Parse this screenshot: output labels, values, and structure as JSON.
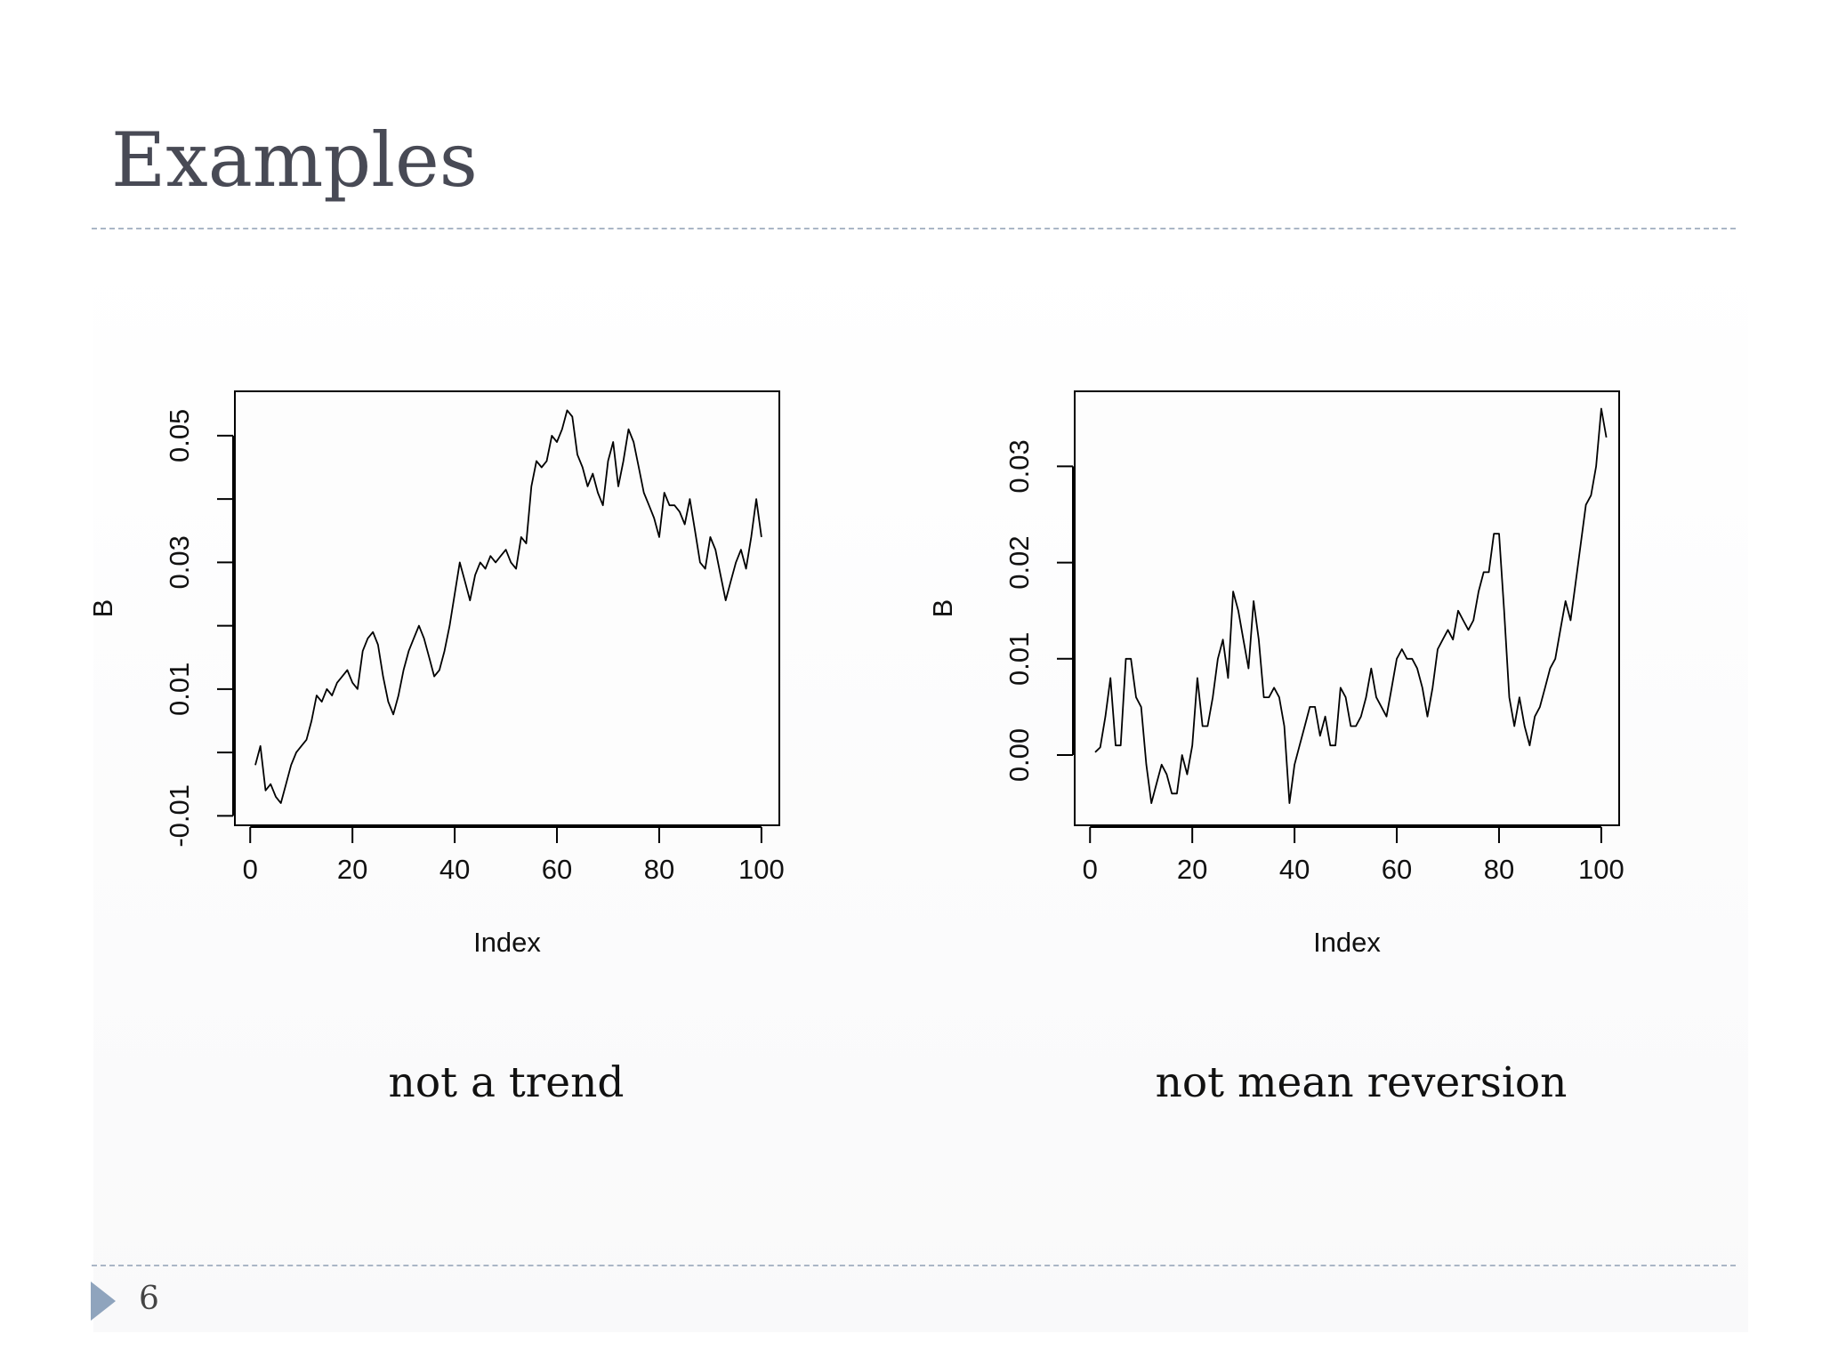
{
  "slide": {
    "title": "Examples",
    "page_number": "6",
    "caption_left": "not a trend",
    "caption_right": "not mean reversion"
  },
  "colors": {
    "title": "#484a55",
    "rule": "#aab6c6",
    "footer_triangle": "#8fa4bd",
    "line": "#000000"
  },
  "icons": {
    "footer_marker": "triangle-right-icon"
  },
  "chart_data": [
    {
      "type": "line",
      "title": "",
      "xlabel": "Index",
      "ylabel": "B",
      "xlim": [
        -3,
        103.5
      ],
      "ylim": [
        -0.0115,
        0.057
      ],
      "xticks": [
        0,
        20,
        40,
        60,
        80,
        100
      ],
      "xtick_labels": [
        "0",
        "20",
        "40",
        "60",
        "80",
        "100"
      ],
      "yticks": [
        -0.01,
        0.0,
        0.01,
        0.02,
        0.03,
        0.04,
        0.05
      ],
      "ytick_labels": [
        "-0.01",
        "",
        "0.01",
        "",
        "0.03",
        "",
        "0.05"
      ],
      "grid": false,
      "series": [
        {
          "values": [
            -0.002,
            0.001,
            -0.006,
            -0.005,
            -0.007,
            -0.008,
            -0.005,
            -0.002,
            0.0,
            0.001,
            0.002,
            0.005,
            0.009,
            0.008,
            0.01,
            0.009,
            0.011,
            0.012,
            0.013,
            0.011,
            0.01,
            0.016,
            0.018,
            0.019,
            0.017,
            0.012,
            0.008,
            0.006,
            0.009,
            0.013,
            0.016,
            0.018,
            0.02,
            0.018,
            0.015,
            0.012,
            0.013,
            0.016,
            0.02,
            0.025,
            0.03,
            0.027,
            0.024,
            0.028,
            0.03,
            0.029,
            0.031,
            0.03,
            0.031,
            0.032,
            0.03,
            0.029,
            0.034,
            0.033,
            0.042,
            0.046,
            0.045,
            0.046,
            0.05,
            0.049,
            0.051,
            0.054,
            0.053,
            0.047,
            0.045,
            0.042,
            0.044,
            0.041,
            0.039,
            0.046,
            0.049,
            0.042,
            0.046,
            0.051,
            0.049,
            0.045,
            0.041,
            0.039,
            0.037,
            0.034,
            0.041,
            0.039,
            0.039,
            0.038,
            0.036,
            0.04,
            0.035,
            0.03,
            0.029,
            0.034,
            0.032,
            0.028,
            0.024,
            0.027,
            0.03,
            0.032,
            0.029,
            0.034,
            0.04,
            0.034
          ]
        }
      ]
    },
    {
      "type": "line",
      "title": "",
      "xlabel": "Index",
      "ylabel": "B",
      "xlim": [
        -3,
        103.5
      ],
      "ylim": [
        -0.0073,
        0.0378
      ],
      "xticks": [
        0,
        20,
        40,
        60,
        80,
        100
      ],
      "xtick_labels": [
        "0",
        "20",
        "40",
        "60",
        "80",
        "100"
      ],
      "yticks": [
        0.0,
        0.01,
        0.02,
        0.03
      ],
      "ytick_labels": [
        "0.00",
        "0.01",
        "0.02",
        "0.03"
      ],
      "grid": false,
      "series": [
        {
          "values": [
            0.0003,
            0.0008,
            0.004,
            0.008,
            0.001,
            0.001,
            0.01,
            0.01,
            0.006,
            0.005,
            -0.001,
            -0.005,
            -0.003,
            -0.001,
            -0.002,
            -0.004,
            -0.004,
            0.0,
            -0.002,
            0.001,
            0.008,
            0.003,
            0.003,
            0.006,
            0.01,
            0.012,
            0.008,
            0.017,
            0.015,
            0.012,
            0.009,
            0.016,
            0.012,
            0.006,
            0.006,
            0.007,
            0.006,
            0.003,
            -0.005,
            -0.001,
            0.001,
            0.003,
            0.005,
            0.005,
            0.002,
            0.004,
            0.001,
            0.001,
            0.007,
            0.006,
            0.003,
            0.003,
            0.004,
            0.006,
            0.009,
            0.006,
            0.005,
            0.004,
            0.007,
            0.01,
            0.011,
            0.01,
            0.01,
            0.009,
            0.007,
            0.004,
            0.007,
            0.011,
            0.012,
            0.013,
            0.012,
            0.015,
            0.014,
            0.013,
            0.014,
            0.017,
            0.019,
            0.019,
            0.023,
            0.023,
            0.015,
            0.006,
            0.003,
            0.006,
            0.003,
            0.001,
            0.004,
            0.005,
            0.007,
            0.009,
            0.01,
            0.013,
            0.016,
            0.014,
            0.018,
            0.022,
            0.026,
            0.027,
            0.03,
            0.036,
            0.033
          ]
        }
      ]
    }
  ]
}
